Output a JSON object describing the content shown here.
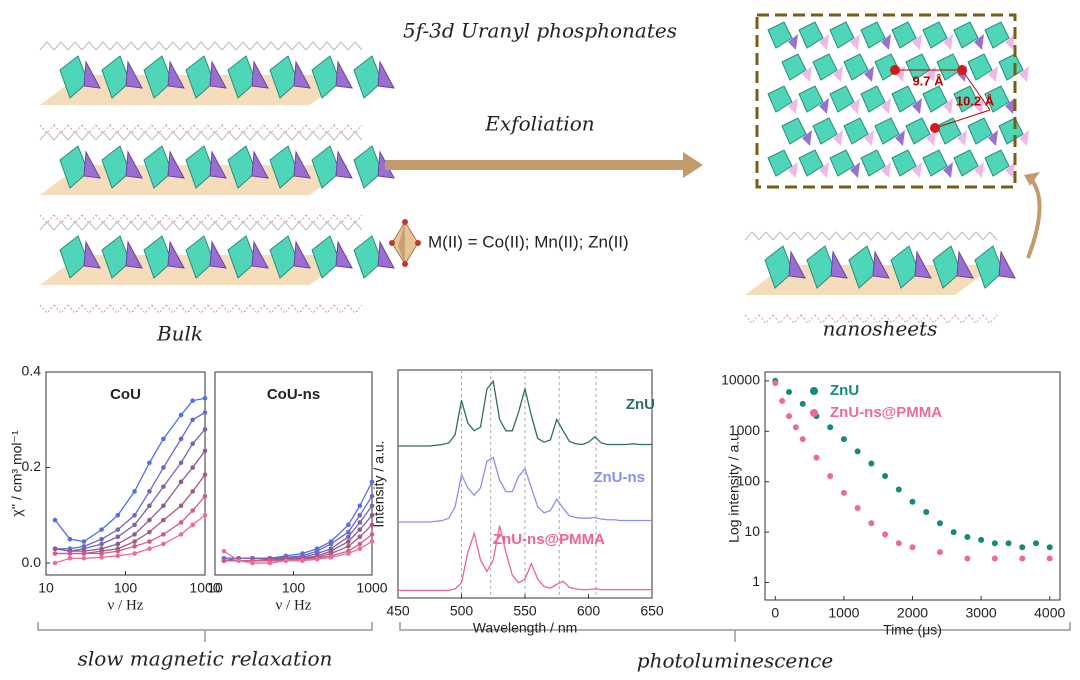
{
  "header": {
    "title": "5f-3d Uranyl phosphonates"
  },
  "scheme": {
    "process": "Exfoliation",
    "metals": "M(II) = Co(II); Mn(II); Zn(II)",
    "bulk_label": "Bulk",
    "nanosheet_label": "nanosheets",
    "distances": [
      "9.7 Å",
      "10.2 Å"
    ]
  },
  "sections": [
    "slow magnetic relaxation",
    "photoluminescence"
  ],
  "chart_data": [
    {
      "type": "line",
      "title": "CoU",
      "x_label": "ν / Hz",
      "y_label": "χ'' / cm³ mol⁻¹",
      "xscale": "log",
      "markers": true,
      "xlim": [
        10,
        1000
      ],
      "xticks": [
        10,
        100,
        1000
      ],
      "ylim": [
        -0.025,
        0.4
      ],
      "yticks": [
        {
          "value": 0,
          "label": "0.0"
        },
        0.2,
        0.4
      ],
      "x": [
        13,
        20,
        30,
        50,
        80,
        130,
        200,
        300,
        500,
        700,
        1000
      ],
      "series": [
        {
          "color": "#4f6fe8",
          "values": [
            0.09,
            0.05,
            0.045,
            0.07,
            0.1,
            0.15,
            0.21,
            0.26,
            0.31,
            0.34,
            0.345
          ]
        },
        {
          "color": "#6868cf",
          "values": [
            0.03,
            0.03,
            0.035,
            0.05,
            0.07,
            0.1,
            0.15,
            0.2,
            0.26,
            0.3,
            0.315
          ]
        },
        {
          "color": "#7a62b2",
          "values": [
            0.03,
            0.025,
            0.03,
            0.04,
            0.055,
            0.08,
            0.12,
            0.16,
            0.21,
            0.25,
            0.28
          ]
        },
        {
          "color": "#8c5b93",
          "values": [
            0.03,
            0.025,
            0.025,
            0.03,
            0.04,
            0.06,
            0.09,
            0.12,
            0.17,
            0.2,
            0.235
          ]
        },
        {
          "color": "#a8587e",
          "values": [
            0.02,
            0.02,
            0.02,
            0.025,
            0.03,
            0.045,
            0.065,
            0.09,
            0.12,
            0.15,
            0.185
          ]
        },
        {
          "color": "#cf5d8a",
          "values": [
            0.02,
            0.02,
            0.02,
            0.02,
            0.025,
            0.035,
            0.045,
            0.06,
            0.085,
            0.11,
            0.14
          ]
        },
        {
          "color": "#f06a9c",
          "values": [
            0.0,
            0.01,
            0.01,
            0.012,
            0.015,
            0.02,
            0.03,
            0.04,
            0.06,
            0.08,
            0.1
          ]
        }
      ]
    },
    {
      "type": "line",
      "title": "CoU-ns",
      "x_label": "ν / Hz",
      "xscale": "log",
      "markers": true,
      "xlim": [
        10,
        1000
      ],
      "xticks": [
        10,
        100,
        1000
      ],
      "ylim": [
        -0.025,
        0.4
      ],
      "x": [
        13,
        20,
        30,
        50,
        80,
        130,
        200,
        300,
        500,
        700,
        1000
      ],
      "series": [
        {
          "color": "#4f6fe8",
          "values": [
            0.01,
            0.01,
            0.01,
            0.01,
            0.015,
            0.02,
            0.03,
            0.045,
            0.08,
            0.12,
            0.17
          ]
        },
        {
          "color": "#6868cf",
          "values": [
            0.01,
            0.01,
            0.01,
            0.01,
            0.012,
            0.015,
            0.025,
            0.04,
            0.065,
            0.1,
            0.14
          ]
        },
        {
          "color": "#7a62b2",
          "values": [
            0.005,
            0.01,
            0.01,
            0.01,
            0.01,
            0.012,
            0.02,
            0.03,
            0.055,
            0.085,
            0.12
          ]
        },
        {
          "color": "#8c5b93",
          "values": [
            0.005,
            0.005,
            0.005,
            0.008,
            0.01,
            0.01,
            0.015,
            0.025,
            0.045,
            0.07,
            0.1
          ]
        },
        {
          "color": "#a8587e",
          "values": [
            0.005,
            0.005,
            0.005,
            0.005,
            0.008,
            0.01,
            0.012,
            0.02,
            0.035,
            0.055,
            0.08
          ]
        },
        {
          "color": "#cf5d8a",
          "values": [
            0.005,
            0.005,
            0.005,
            0.005,
            0.005,
            0.008,
            0.01,
            0.015,
            0.025,
            0.04,
            0.06
          ]
        },
        {
          "color": "#f06a9c",
          "values": [
            0.025,
            0.005,
            0.0,
            0.0,
            0.005,
            0.005,
            0.008,
            0.012,
            0.02,
            0.03,
            0.045
          ]
        }
      ]
    },
    {
      "type": "line",
      "x_label": "Wavelength / nm",
      "y_label": "Intensity / a.u.",
      "xlim": [
        450,
        650
      ],
      "xticks": [
        450,
        500,
        550,
        600,
        650
      ],
      "ylim": [
        0,
        3
      ],
      "reference_lines": [
        500,
        523,
        550,
        577,
        606
      ],
      "x": [
        450,
        455,
        460,
        465,
        470,
        475,
        480,
        485,
        490,
        495,
        500,
        505,
        510,
        515,
        520,
        525,
        530,
        535,
        540,
        545,
        550,
        555,
        560,
        565,
        570,
        575,
        580,
        585,
        590,
        595,
        600,
        605,
        610,
        615,
        620,
        625,
        630,
        635,
        640,
        645,
        650
      ],
      "series": [
        {
          "name": "ZnU",
          "color": "#2e6e62",
          "values": [
            2.0,
            2.0,
            2.0,
            2.0,
            2.0,
            2.0,
            2.01,
            2.02,
            2.04,
            2.15,
            2.6,
            2.3,
            2.2,
            2.25,
            2.75,
            2.85,
            2.35,
            2.2,
            2.2,
            2.45,
            2.75,
            2.4,
            2.1,
            2.05,
            2.08,
            2.35,
            2.2,
            2.06,
            2.03,
            2.02,
            2.05,
            2.12,
            2.04,
            2.02,
            2.02,
            2.02,
            2.02,
            2.03,
            2.02,
            2.02,
            2.02
          ]
        },
        {
          "name": "ZnU-ns",
          "color": "#8a8ff0",
          "values": [
            1.0,
            1.0,
            1.0,
            1.0,
            1.0,
            1.0,
            1.01,
            1.02,
            1.05,
            1.2,
            1.62,
            1.45,
            1.35,
            1.45,
            1.8,
            1.85,
            1.55,
            1.4,
            1.4,
            1.6,
            1.7,
            1.45,
            1.2,
            1.12,
            1.15,
            1.3,
            1.18,
            1.08,
            1.06,
            1.05,
            1.05,
            1.06,
            1.04,
            1.03,
            1.03,
            1.02,
            1.02,
            1.02,
            1.02,
            1.02,
            1.02
          ]
        },
        {
          "name": "ZnU-ns@PMMA",
          "color": "#f06292",
          "values": [
            0.1,
            0.1,
            0.1,
            0.1,
            0.1,
            0.1,
            0.1,
            0.1,
            0.1,
            0.12,
            0.2,
            0.6,
            0.85,
            0.5,
            0.35,
            0.5,
            0.95,
            0.6,
            0.3,
            0.2,
            0.25,
            0.45,
            0.25,
            0.15,
            0.13,
            0.18,
            0.22,
            0.14,
            0.12,
            0.11,
            0.11,
            0.12,
            0.11,
            0.11,
            0.11,
            0.11,
            0.11,
            0.11,
            0.11,
            0.11,
            0.11
          ]
        }
      ]
    },
    {
      "type": "scatter",
      "x_label": "Time (μs)",
      "y_label": "Log intensity / a.u.",
      "yscale": "log",
      "xlim": [
        -150,
        4150
      ],
      "xticks": [
        0,
        1000,
        2000,
        3000,
        4000
      ],
      "ylim": [
        0.45,
        15000
      ],
      "yticks": [
        1,
        10,
        100,
        1000,
        10000
      ],
      "series": [
        {
          "name": "ZnU",
          "color": "#138a7a",
          "x": [
            0,
            200,
            400,
            600,
            800,
            1000,
            1200,
            1400,
            1600,
            1800,
            2000,
            2200,
            2400,
            2600,
            2800,
            3000,
            3200,
            3400,
            3600,
            3800,
            4000
          ],
          "values": [
            10000,
            6000,
            3500,
            2000,
            1200,
            700,
            400,
            230,
            130,
            70,
            40,
            25,
            15,
            10,
            8,
            7,
            6,
            6,
            5,
            6,
            5
          ]
        },
        {
          "name": "ZnU-ns@PMMA",
          "color": "#f0689a",
          "x": [
            0,
            100,
            200,
            300,
            400,
            600,
            800,
            1000,
            1200,
            1400,
            1600,
            1800,
            2000,
            2400,
            2800,
            3200,
            3600,
            4000
          ],
          "values": [
            9000,
            4000,
            2000,
            1200,
            700,
            300,
            130,
            60,
            30,
            15,
            9,
            6,
            5,
            4,
            3,
            3,
            3,
            3
          ]
        }
      ]
    }
  ]
}
